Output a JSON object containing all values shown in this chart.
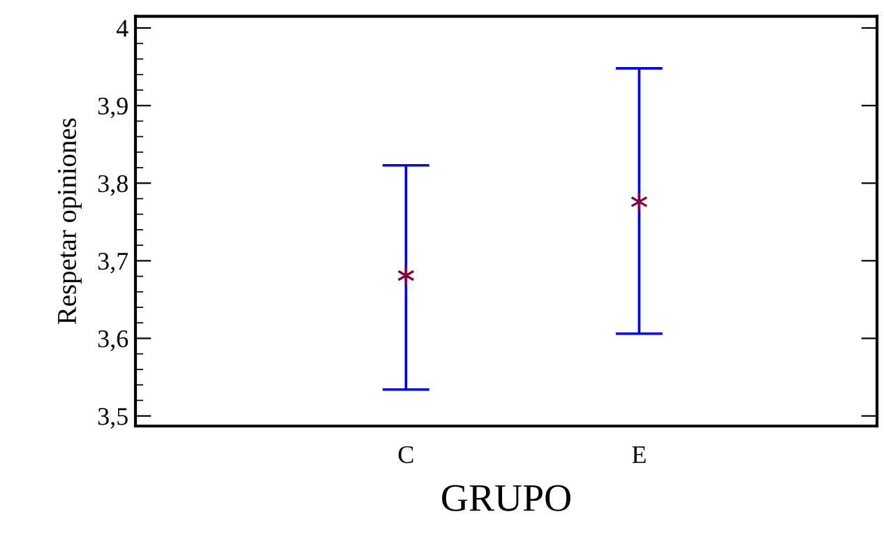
{
  "chart_data": {
    "type": "scatter",
    "xlabel": "GRUPO",
    "ylabel": "Respetar opiniones",
    "categories": [
      "C",
      "E"
    ],
    "series": [
      {
        "color": "#0000ff",
        "colors": [
          "#800040",
          "#800040"
        ],
        "values": [
          3.681,
          3.776
        ],
        "errors": [
          [
            3.534,
            3.823
          ],
          [
            3.606,
            3.948
          ]
        ]
      }
    ],
    "marker": "cross",
    "grid": false,
    "legend": false,
    "ylim": [
      3.487,
      4.015
    ],
    "yticks": [
      {
        "value": 3.5,
        "label": "3,5"
      },
      {
        "value": 3.6,
        "label": "3,6"
      },
      {
        "value": 3.7,
        "label": "3,7"
      },
      {
        "value": 3.8,
        "label": "3,8"
      },
      {
        "value": 3.9,
        "label": "3,9"
      },
      {
        "value": 4,
        "label": "4"
      }
    ]
  }
}
